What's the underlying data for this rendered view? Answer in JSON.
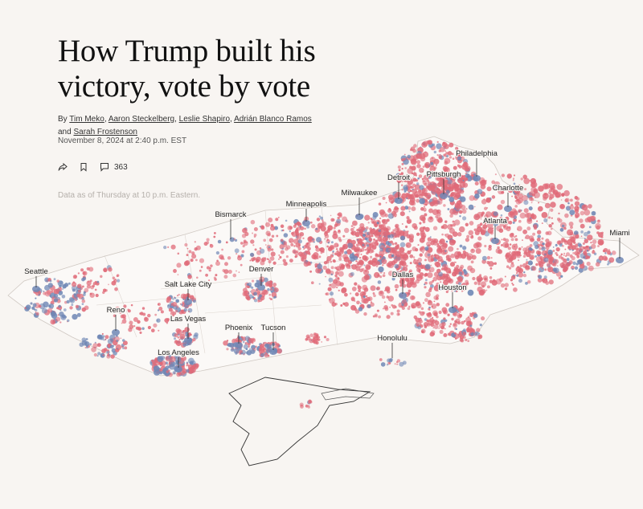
{
  "article": {
    "headline": "How Trump built his victory, vote by vote",
    "byline_prefix": "By",
    "authors": [
      "Tim Meko",
      "Aaron Steckelberg",
      "Leslie Shapiro",
      "Adrián Blanco Ramos",
      "Sarah Frostenson"
    ],
    "sep1": ", ",
    "sep2": ", ",
    "sep3": ", ",
    "sep4": " and ",
    "timestamp": "November 8, 2024 at 2:40 p.m. EST",
    "comment_count": "363",
    "data_note": "Data as of Thursday at 10 p.m. Eastern."
  },
  "icons": {
    "share": "share-icon",
    "bookmark": "bookmark-icon",
    "comments": "comment-icon"
  },
  "colors": {
    "background": "#f8f5f2",
    "republican": "#e06a78",
    "democrat": "#6f87b5"
  },
  "map": {
    "cities": [
      "Seattle",
      "Reno",
      "Los Angeles",
      "Las Vegas",
      "Salt Lake City",
      "Phoenix",
      "Tucson",
      "Denver",
      "Bismarck",
      "Minneapolis",
      "Milwaukee",
      "Detroit",
      "Pittsburgh",
      "Philadelphia",
      "Charlotte",
      "Atlanta",
      "Miami",
      "Dallas",
      "Houston",
      "Honolulu"
    ]
  }
}
